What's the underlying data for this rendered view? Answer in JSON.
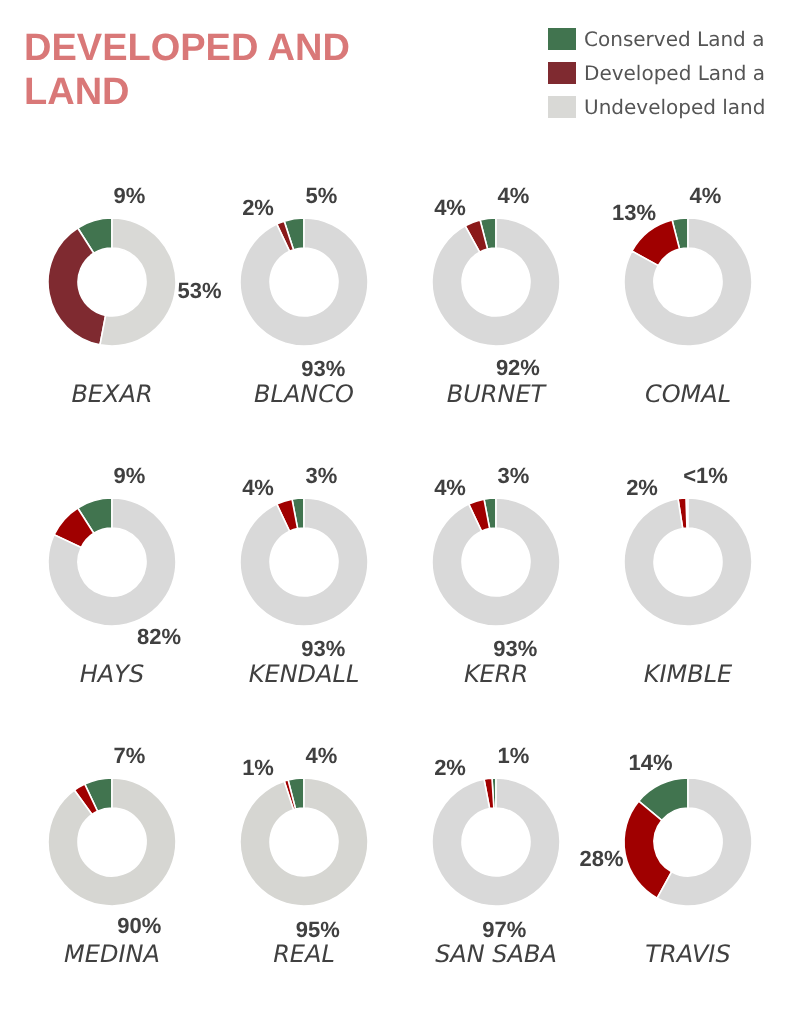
{
  "chart_data": [
    {
      "type": "donut",
      "title": "DEVELOPED AND\nLAND",
      "legend": "top right",
      "xlabel": "BEXAR",
      "categories": [
        "Conserved Land a",
        "Developed Land a",
        "Undeveloped land"
      ],
      "colors": [
        "#41744f",
        "#7f2a30",
        "#d9d9d6"
      ],
      "values": [
        9,
        38,
        53
      ],
      "value_labels": [
        "9%",
        null,
        "53%"
      ]
    },
    {
      "type": "donut",
      "xlabel": "BLANCO",
      "categories": [
        null,
        null,
        null
      ],
      "colors": [
        "#41744f",
        "#8b1a1a",
        "#d9d9d9"
      ],
      "values": [
        5,
        2,
        93
      ],
      "value_labels": [
        "5%",
        "2%",
        "93%"
      ]
    },
    {
      "type": "donut",
      "xlabel": "BURNET",
      "categories": [
        null,
        null,
        null
      ],
      "colors": [
        "#41744f",
        "#8b1a1a",
        "#d9d9d9"
      ],
      "values": [
        4,
        4,
        92
      ],
      "value_labels": [
        "4%",
        "4%",
        "92%"
      ]
    },
    {
      "type": "donut",
      "xlabel": "COMAL",
      "categories": [
        null,
        null,
        null
      ],
      "colors": [
        "#41744f",
        "#a00000",
        "#d9d9d9"
      ],
      "values": [
        4,
        13,
        83
      ],
      "value_labels": [
        "4%",
        "13%",
        null
      ]
    },
    {
      "type": "donut",
      "xlabel": "HAYS",
      "categories": [
        null,
        null,
        null
      ],
      "colors": [
        "#41744f",
        "#a00000",
        "#d9d9d9"
      ],
      "values": [
        9,
        9,
        82
      ],
      "value_labels": [
        "9%",
        null,
        "82%"
      ]
    },
    {
      "type": "donut",
      "xlabel": "KENDALL",
      "categories": [
        null,
        null,
        null
      ],
      "colors": [
        "#41744f",
        "#a00000",
        "#d9d9d9"
      ],
      "values": [
        3,
        4,
        93
      ],
      "value_labels": [
        "3%",
        "4%",
        "93%"
      ]
    },
    {
      "type": "donut",
      "xlabel": "KERR",
      "categories": [
        null,
        null,
        null
      ],
      "colors": [
        "#41744f",
        "#a00000",
        "#d9d9d9"
      ],
      "values": [
        3,
        4,
        93
      ],
      "value_labels": [
        "3%",
        "4%",
        "93%"
      ]
    },
    {
      "type": "donut",
      "xlabel": "KIMBLE",
      "categories": [
        null,
        null,
        null
      ],
      "colors": [
        "#41744f",
        "#a00000",
        "#d9d9d9"
      ],
      "values": [
        0.5,
        2,
        97.5
      ],
      "value_labels": [
        "<1%",
        "2%",
        null
      ]
    },
    {
      "type": "donut",
      "xlabel": "MEDINA",
      "categories": [
        null,
        null,
        null
      ],
      "colors": [
        "#41744f",
        "#a00000",
        "#d6d6d2"
      ],
      "values": [
        7,
        3,
        90
      ],
      "value_labels": [
        "7%",
        null,
        "90%"
      ]
    },
    {
      "type": "donut",
      "xlabel": "REAL",
      "categories": [
        null,
        null,
        null
      ],
      "colors": [
        "#41744f",
        "#a00000",
        "#d6d6d2"
      ],
      "values": [
        4,
        1,
        95
      ],
      "value_labels": [
        "4%",
        "1%",
        "95%"
      ]
    },
    {
      "type": "donut",
      "xlabel": "SAN SABA",
      "categories": [
        null,
        null,
        null
      ],
      "colors": [
        "#41744f",
        "#a00000",
        "#d9d9d9"
      ],
      "values": [
        1,
        2,
        97
      ],
      "value_labels": [
        "1%",
        "2%",
        "97%"
      ]
    },
    {
      "type": "donut",
      "xlabel": "TRAVIS",
      "categories": [
        null,
        null,
        null
      ],
      "colors": [
        "#41744f",
        "#a00000",
        "#d9d9d9"
      ],
      "values": [
        14,
        28,
        58
      ],
      "value_labels": [
        "14%",
        "28%",
        null
      ]
    }
  ]
}
